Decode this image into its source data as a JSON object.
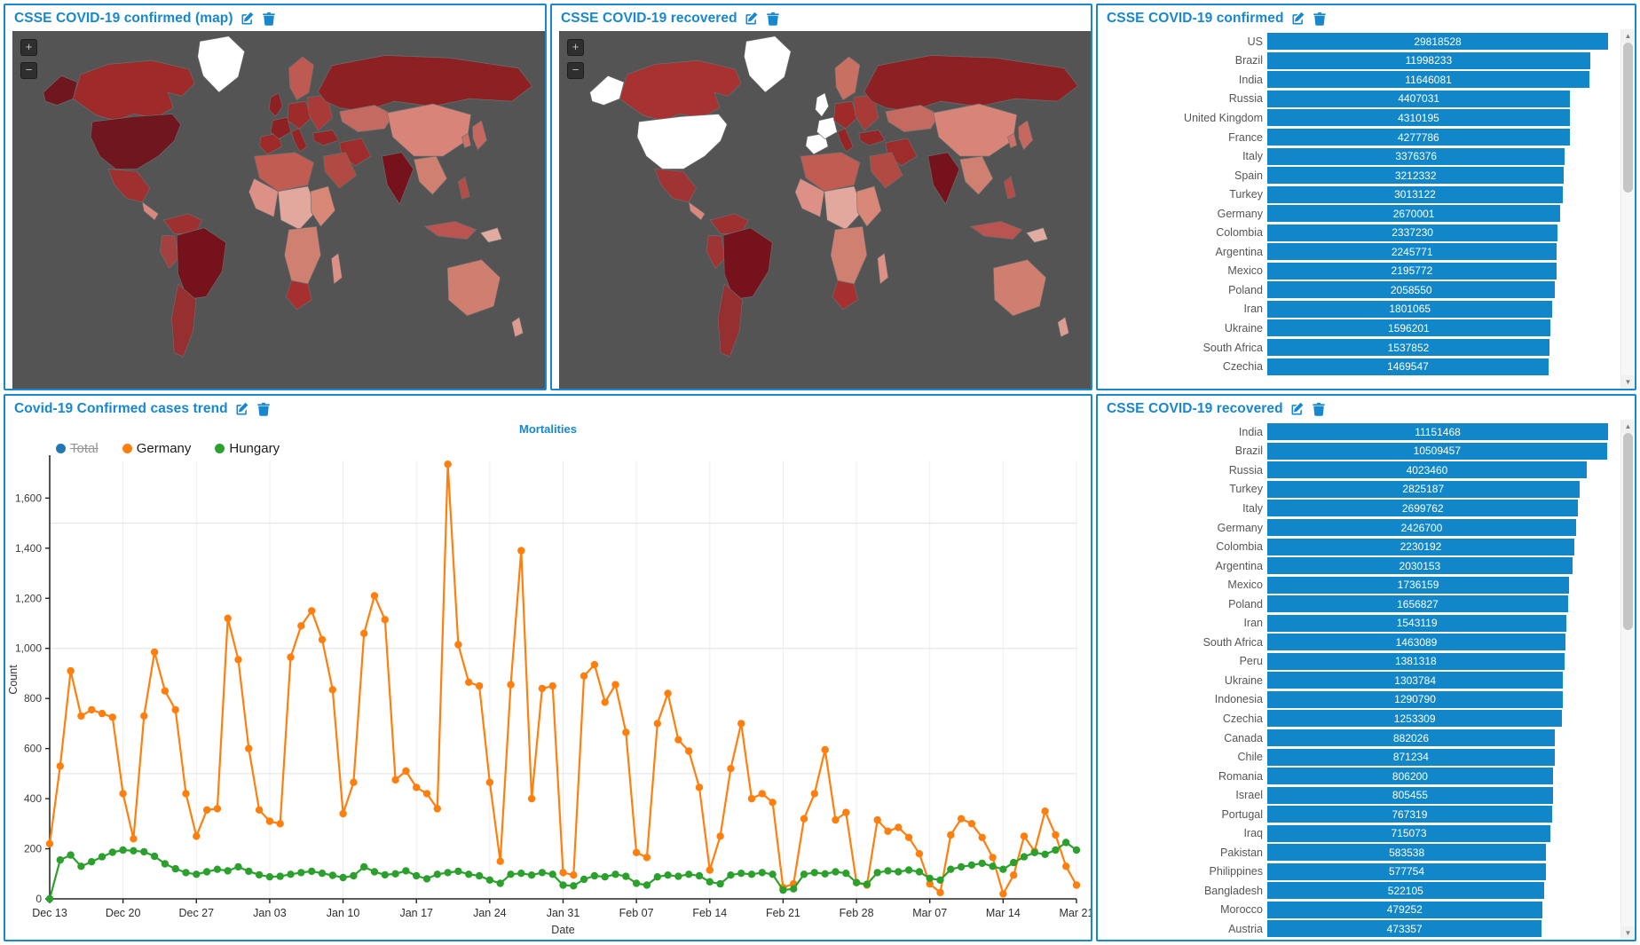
{
  "colors": {
    "accent_blue": "#1787d0",
    "bar_blue": "#1187c9",
    "map_background": "#545454",
    "map_no_data": "#ffffff",
    "series_total": "#1f77b4",
    "series_germany": "#ff7f0e",
    "series_hungary": "#2ca02c"
  },
  "scrollbar": {
    "up": "▲",
    "down": "▼"
  },
  "panels": {
    "map_confirmed": {
      "title": "CSSE COVID-19 confirmed (map)",
      "zoom_in": "+",
      "zoom_out": "−"
    },
    "map_recovered": {
      "title": "CSSE COVID-19 recovered",
      "zoom_in": "+",
      "zoom_out": "−"
    },
    "bars_confirmed": {
      "title": "CSSE COVID-19 confirmed",
      "rows": [
        {
          "label": "US",
          "value": 29818528
        },
        {
          "label": "Brazil",
          "value": 11998233
        },
        {
          "label": "India",
          "value": 11646081
        },
        {
          "label": "Russia",
          "value": 4407031
        },
        {
          "label": "United Kingdom",
          "value": 4310195
        },
        {
          "label": "France",
          "value": 4277786
        },
        {
          "label": "Italy",
          "value": 3376376
        },
        {
          "label": "Spain",
          "value": 3212332
        },
        {
          "label": "Turkey",
          "value": 3013122
        },
        {
          "label": "Germany",
          "value": 2670001
        },
        {
          "label": "Colombia",
          "value": 2337230
        },
        {
          "label": "Argentina",
          "value": 2245771
        },
        {
          "label": "Mexico",
          "value": 2195772
        },
        {
          "label": "Poland",
          "value": 2058550
        },
        {
          "label": "Iran",
          "value": 1801065
        },
        {
          "label": "Ukraine",
          "value": 1596201
        },
        {
          "label": "South Africa",
          "value": 1537852
        },
        {
          "label": "Czechia",
          "value": 1469547
        }
      ]
    },
    "trend": {
      "title": "Covid-19 Confirmed cases trend"
    },
    "bars_recovered": {
      "title": "CSSE COVID-19 recovered",
      "rows": [
        {
          "label": "India",
          "value": 11151468
        },
        {
          "label": "Brazil",
          "value": 10509457
        },
        {
          "label": "Russia",
          "value": 4023460
        },
        {
          "label": "Turkey",
          "value": 2825187
        },
        {
          "label": "Italy",
          "value": 2699762
        },
        {
          "label": "Germany",
          "value": 2426700
        },
        {
          "label": "Colombia",
          "value": 2230192
        },
        {
          "label": "Argentina",
          "value": 2030153
        },
        {
          "label": "Mexico",
          "value": 1736159
        },
        {
          "label": "Poland",
          "value": 1656827
        },
        {
          "label": "Iran",
          "value": 1543119
        },
        {
          "label": "South Africa",
          "value": 1463089
        },
        {
          "label": "Peru",
          "value": 1381318
        },
        {
          "label": "Ukraine",
          "value": 1303784
        },
        {
          "label": "Indonesia",
          "value": 1290790
        },
        {
          "label": "Czechia",
          "value": 1253309
        },
        {
          "label": "Canada",
          "value": 882026
        },
        {
          "label": "Chile",
          "value": 871234
        },
        {
          "label": "Romania",
          "value": 806200
        },
        {
          "label": "Israel",
          "value": 805455
        },
        {
          "label": "Portugal",
          "value": 767319
        },
        {
          "label": "Iraq",
          "value": 715073
        },
        {
          "label": "Pakistan",
          "value": 583538
        },
        {
          "label": "Philippines",
          "value": 577754
        },
        {
          "label": "Bangladesh",
          "value": 522105
        },
        {
          "label": "Morocco",
          "value": 479252
        },
        {
          "label": "Austria",
          "value": 473357
        }
      ]
    }
  },
  "chart_data": {
    "type": "line",
    "title": "Mortalities",
    "xlabel": "Date",
    "ylabel": "Count",
    "x_tick_labels": [
      "Dec 13",
      "Dec 20",
      "Dec 27",
      "Jan 03",
      "Jan 10",
      "Jan 17",
      "Jan 24",
      "Jan 31",
      "Feb 07",
      "Feb 14",
      "Feb 21",
      "Feb 28",
      "Mar 07",
      "Mar 14",
      "Mar 21"
    ],
    "x_tick_days": [
      0,
      7,
      14,
      21,
      28,
      35,
      42,
      49,
      56,
      63,
      70,
      77,
      84,
      91,
      98
    ],
    "ylim": [
      0,
      1750
    ],
    "y_tick_step": 200,
    "y_max_tick": 1600,
    "grid_y_step": 500,
    "grid": true,
    "legend_position": "top-left",
    "legend": [
      {
        "label": "Total",
        "color": "#1f77b4",
        "hidden": true
      },
      {
        "label": "Germany",
        "color": "#ff7f0e",
        "hidden": false
      },
      {
        "label": "Hungary",
        "color": "#2ca02c",
        "hidden": false
      }
    ],
    "series": [
      {
        "name": "Germany",
        "color": "#ff7f0e",
        "values": [
          220,
          530,
          910,
          730,
          755,
          740,
          725,
          420,
          240,
          730,
          985,
          830,
          755,
          420,
          250,
          355,
          360,
          1120,
          955,
          600,
          355,
          310,
          300,
          965,
          1090,
          1150,
          1035,
          835,
          340,
          465,
          1060,
          1210,
          1115,
          475,
          510,
          445,
          420,
          360,
          1735,
          1015,
          865,
          850,
          465,
          150,
          855,
          1390,
          400,
          840,
          850,
          105,
          95,
          890,
          935,
          785,
          855,
          665,
          185,
          165,
          700,
          820,
          635,
          590,
          445,
          115,
          250,
          520,
          700,
          400,
          420,
          385,
          45,
          60,
          320,
          420,
          595,
          315,
          345,
          65,
          55,
          315,
          270,
          285,
          245,
          180,
          60,
          25,
          255,
          320,
          300,
          245,
          165,
          20,
          95,
          250,
          190,
          350,
          255,
          130,
          55
        ]
      },
      {
        "name": "Hungary",
        "color": "#2ca02c",
        "values": [
          0,
          155,
          175,
          130,
          148,
          168,
          186,
          195,
          192,
          188,
          170,
          140,
          120,
          105,
          98,
          108,
          118,
          112,
          128,
          110,
          96,
          88,
          90,
          98,
          105,
          110,
          102,
          94,
          85,
          92,
          128,
          108,
          96,
          100,
          112,
          92,
          80,
          98,
          105,
          110,
          98,
          92,
          75,
          62,
          98,
          102,
          95,
          105,
          98,
          55,
          52,
          78,
          92,
          88,
          98,
          90,
          62,
          55,
          88,
          95,
          90,
          98,
          92,
          68,
          60,
          95,
          102,
          98,
          105,
          98,
          35,
          40,
          98,
          105,
          100,
          108,
          102,
          65,
          58,
          105,
          112,
          108,
          115,
          108,
          82,
          75,
          118,
          128,
          135,
          142,
          130,
          118,
          145,
          168,
          185,
          178,
          195,
          225,
          195
        ]
      }
    ]
  },
  "map_fills": {
    "confirmed": {
      "alaska": "#6f161e",
      "canada": "#9e2a2a",
      "us": "#6f161e",
      "greenland": "#ffffff",
      "mexico": "#a03030",
      "central_america": "#d98880",
      "colombia_venezuela": "#9e3030",
      "peru": "#a34040",
      "brazil": "#76121c",
      "argentina": "#963030",
      "scandinavia": "#bd5a52",
      "uk": "#8d2022",
      "iberia": "#9e2a2a",
      "france": "#8d2022",
      "central_europe": "#9e2a2a",
      "italy": "#962424",
      "east_europe": "#a83a38",
      "russia": "#8d2022",
      "kazakh": "#c56a60",
      "turkey": "#962626",
      "iran": "#9e2c2c",
      "saudi": "#b24a44",
      "north_africa": "#c05c52",
      "west_africa": "#dd9086",
      "central_africa": "#e2a89e",
      "east_africa": "#d98878",
      "southern_africa": "#d08070",
      "south_africa": "#a63030",
      "madagascar": "#dd9086",
      "india": "#76121c",
      "china": "#d88478",
      "se_asia": "#d08070",
      "indonesia": "#b95450",
      "philippines": "#b14e48",
      "japan": "#c56860",
      "korea": "#cc7068",
      "australia": "#d07e70",
      "new_zealand": "#dd9c90",
      "papua": "#e0aca0"
    },
    "recovered": {
      "alaska": "#ffffff",
      "canada": "#a83232",
      "us": "#ffffff",
      "greenland": "#ffffff",
      "mexico": "#a03434",
      "central_america": "#d98880",
      "colombia_venezuela": "#9e3030",
      "peru": "#9e3434",
      "brazil": "#76121c",
      "argentina": "#963030",
      "scandinavia": "#c87062",
      "uk": "#ffffff",
      "iberia": "#ffffff",
      "france": "#ffffff",
      "central_europe": "#9e2a2a",
      "italy": "#962424",
      "east_europe": "#a83a38",
      "russia": "#8d2022",
      "kazakh": "#c56a60",
      "turkey": "#962626",
      "iran": "#9e2c2c",
      "saudi": "#b24a44",
      "north_africa": "#c05c52",
      "west_africa": "#dd9086",
      "central_africa": "#e2a89e",
      "east_africa": "#d98878",
      "southern_africa": "#d08070",
      "south_africa": "#a63030",
      "madagascar": "#dd9086",
      "india": "#76121c",
      "china": "#d88478",
      "se_asia": "#d08070",
      "indonesia": "#b95450",
      "philippines": "#b14e48",
      "japan": "#c56860",
      "korea": "#cc7068",
      "australia": "#d07e70",
      "new_zealand": "#dd9c90",
      "papua": "#e0aca0"
    }
  }
}
